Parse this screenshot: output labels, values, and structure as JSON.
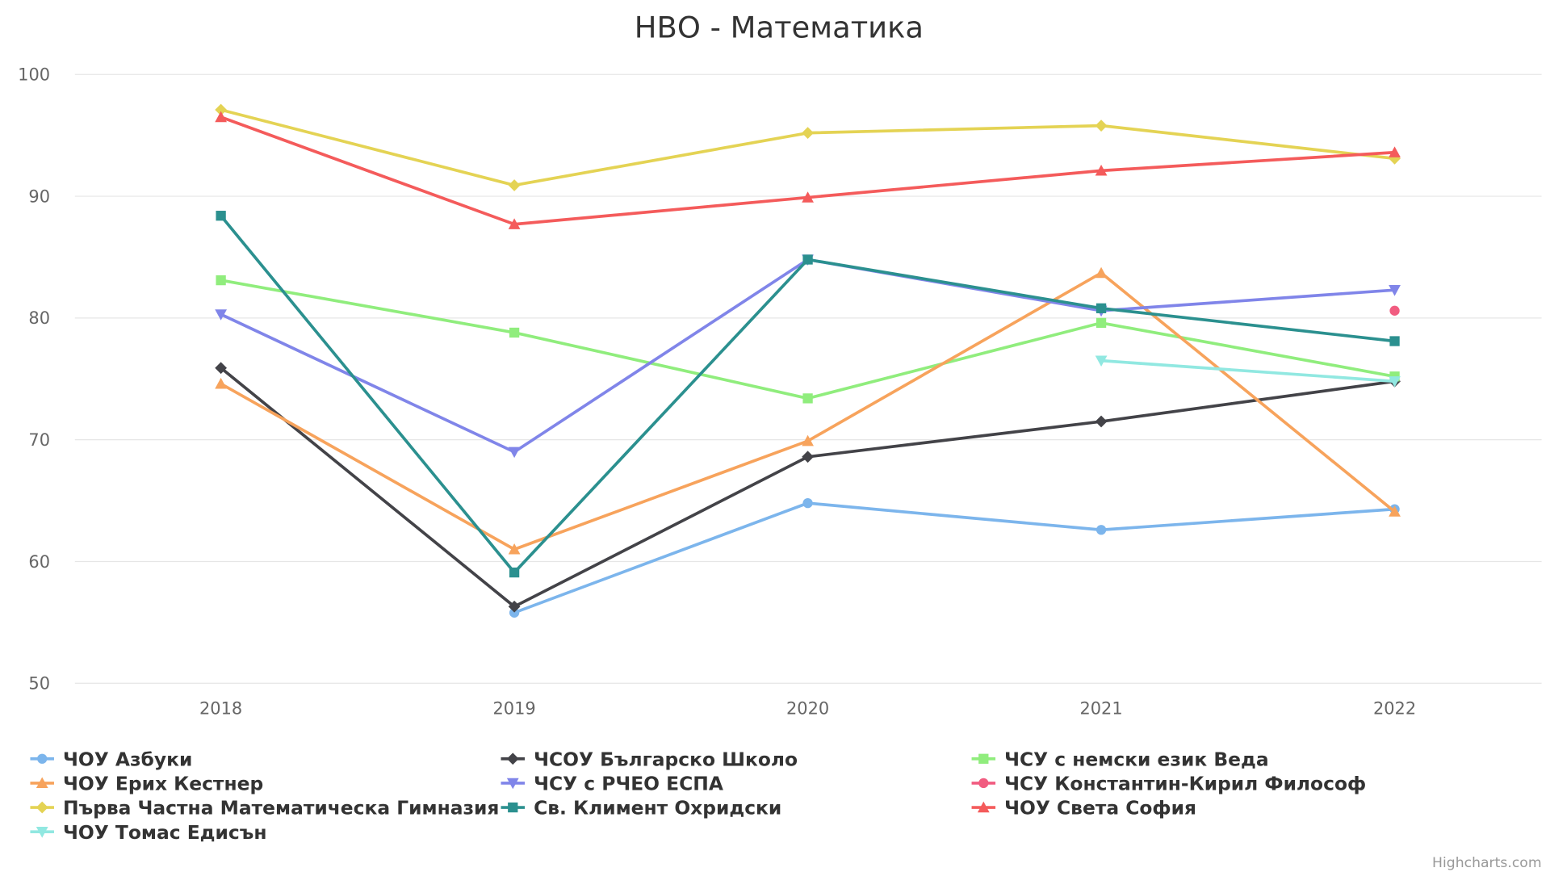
{
  "chart_data": {
    "type": "line",
    "title": "НВО - Математика",
    "xlabel": "",
    "ylabel": "",
    "categories": [
      "2018",
      "2019",
      "2020",
      "2021",
      "2022"
    ],
    "ylim": [
      50,
      100
    ],
    "yticks": [
      "50",
      "60",
      "70",
      "80",
      "90",
      "100"
    ],
    "grid": true,
    "legend_placement": "bottom",
    "series": [
      {
        "name": "ЧОУ Азбуки",
        "color": "#7cb5ec",
        "marker": "circle",
        "values": [
          null,
          55.8,
          64.8,
          62.6,
          64.3
        ]
      },
      {
        "name": "ЧСОУ Българско Школо",
        "color": "#434348",
        "marker": "diamond",
        "values": [
          75.9,
          56.3,
          68.6,
          71.5,
          74.8
        ]
      },
      {
        "name": "ЧСУ с немски език Веда",
        "color": "#90ed7d",
        "marker": "square",
        "values": [
          83.1,
          78.8,
          73.4,
          79.6,
          75.2
        ]
      },
      {
        "name": "ЧОУ Ерих Кестнер",
        "color": "#f7a35c",
        "marker": "triangle",
        "values": [
          74.6,
          61.0,
          69.9,
          83.7,
          64.1
        ]
      },
      {
        "name": "ЧСУ с РЧЕО ЕСПА",
        "color": "#8085e9",
        "marker": "triangle-down",
        "values": [
          80.3,
          69.0,
          84.8,
          80.6,
          82.3
        ]
      },
      {
        "name": "ЧСУ Константин-Кирил Философ",
        "color": "#f15c80",
        "marker": "circle",
        "values": [
          null,
          null,
          null,
          null,
          80.6
        ]
      },
      {
        "name": "Първа Частна Математическа Гимназия",
        "color": "#e4d354",
        "marker": "diamond",
        "values": [
          97.1,
          90.9,
          95.2,
          95.8,
          93.1
        ]
      },
      {
        "name": "Св. Климент Охридски",
        "color": "#2b908f",
        "marker": "square",
        "values": [
          88.4,
          59.1,
          84.8,
          80.8,
          78.1
        ]
      },
      {
        "name": "ЧОУ Света София",
        "color": "#f45b5b",
        "marker": "triangle",
        "values": [
          96.5,
          87.7,
          89.9,
          92.1,
          93.6
        ]
      },
      {
        "name": "ЧОУ Томас Едисън",
        "color": "#91e8e1",
        "marker": "triangle-down",
        "values": [
          null,
          null,
          null,
          76.5,
          74.8
        ]
      }
    ],
    "credits": "Highcharts.com"
  }
}
